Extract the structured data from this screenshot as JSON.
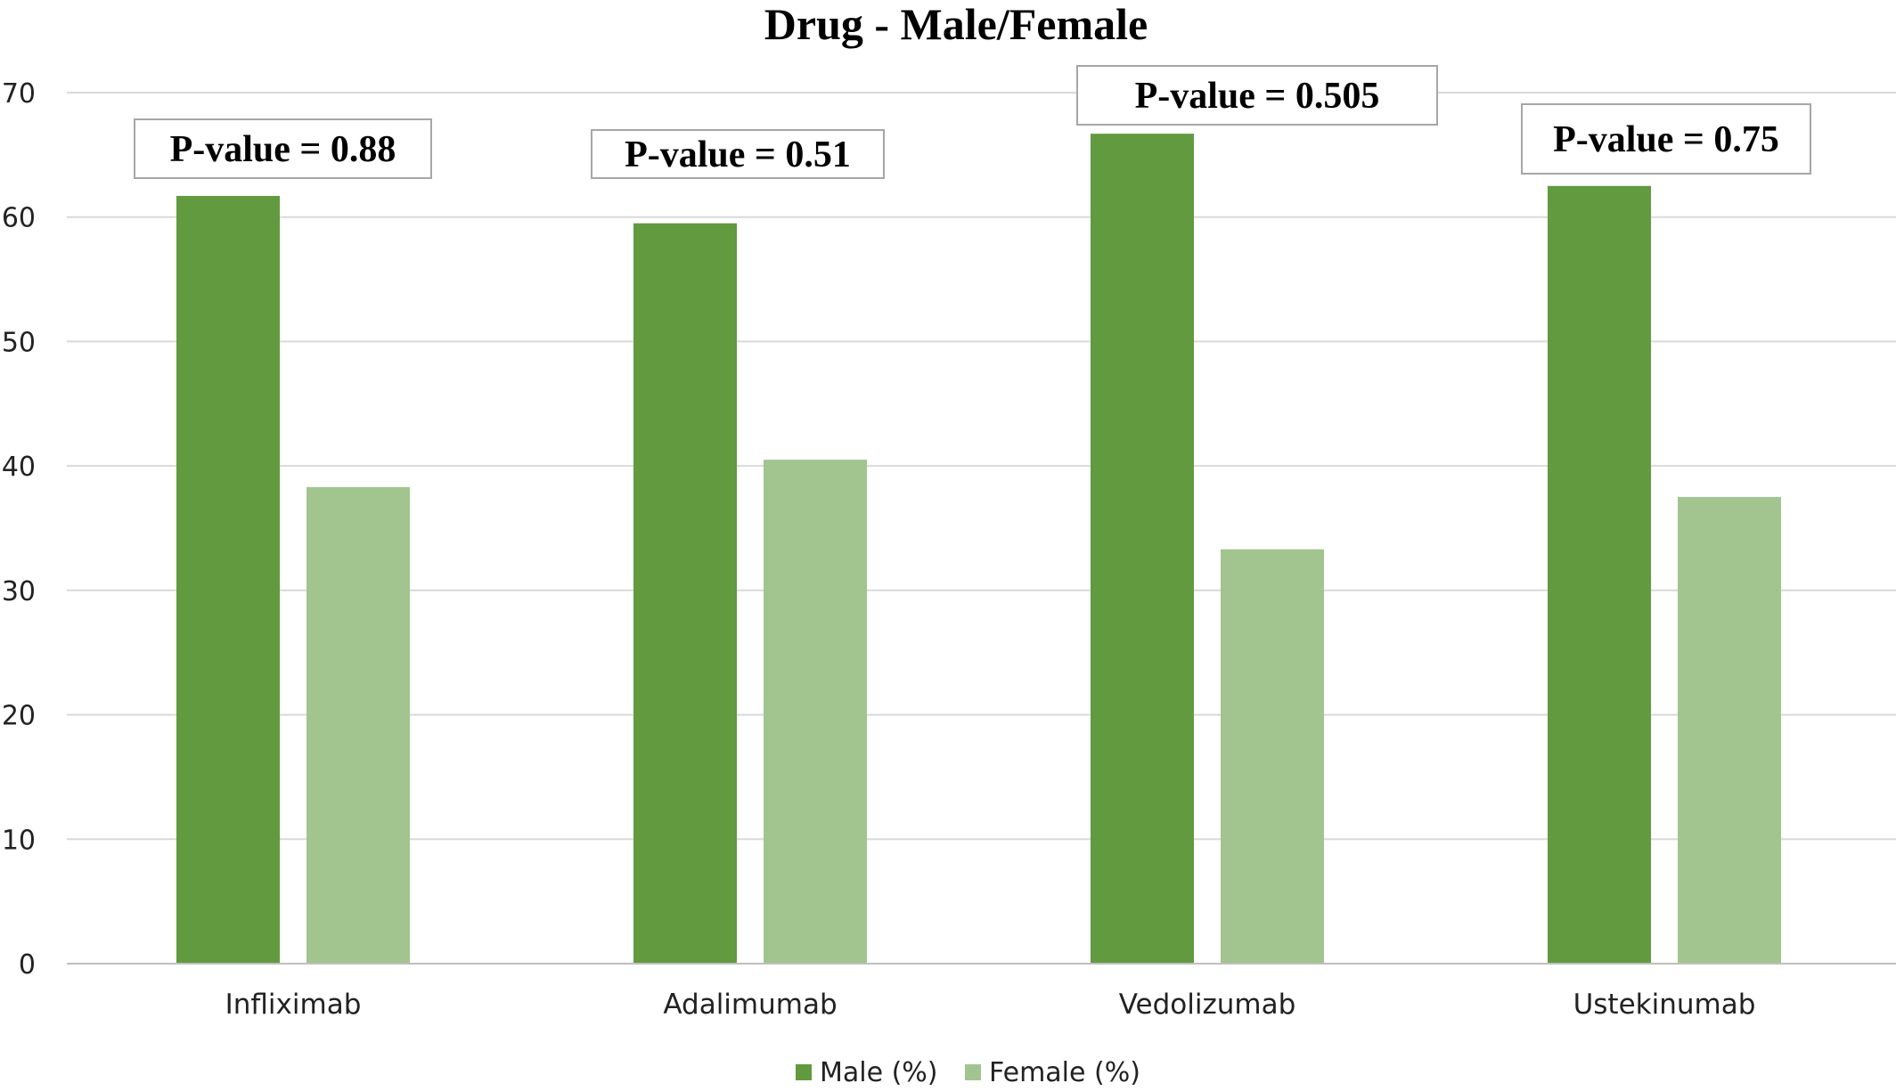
{
  "chart_data": {
    "type": "bar",
    "title": "Drug - Male/Female",
    "xlabel": "",
    "ylabel": "",
    "categories": [
      "Infliximab",
      "Adalimumab",
      "Vedolizumab",
      "Ustekinumab"
    ],
    "series": [
      {
        "name": "Male (%)",
        "color": "#629A3F",
        "values": [
          61.7,
          59.5,
          66.7,
          62.5
        ]
      },
      {
        "name": "Female (%)",
        "color": "#A2C48F",
        "values": [
          38.3,
          40.5,
          33.3,
          37.5
        ]
      }
    ],
    "ylim": [
      0,
      70
    ],
    "yticks": [
      0,
      10,
      20,
      30,
      40,
      50,
      60,
      70
    ],
    "grid": true,
    "legend_position": "bottom",
    "annotations": [
      "P-value = 0.88",
      "P-value = 0.51",
      "P-value = 0.505",
      "P-value = 0.75"
    ]
  }
}
